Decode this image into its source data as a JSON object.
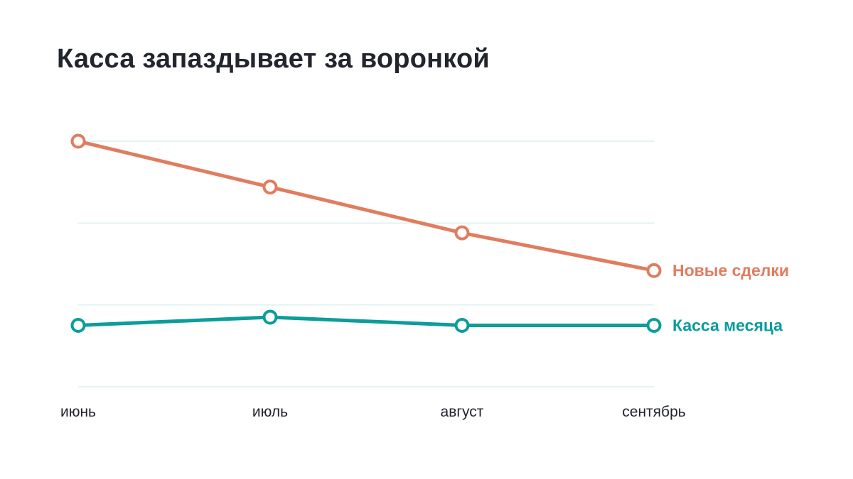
{
  "colors": {
    "background": "#ffffff",
    "title": "#23252e",
    "grid": "#e3f3f3",
    "series_deals": "#e07d5f",
    "series_cash": "#0c9c9c"
  },
  "chart_data": {
    "type": "line",
    "title": "Касса запаздывает за воронкой",
    "xlabel": "",
    "ylabel": "",
    "categories": [
      "июнь",
      "июль",
      "август",
      "сентябрь"
    ],
    "ylim": [
      0,
      3
    ],
    "y_ticks_labeled": false,
    "grid": "horizontal",
    "legend": "direct labels at right end of lines",
    "series": [
      {
        "name": "Новые сделки",
        "values": [
          3.0,
          2.44,
          1.88,
          1.42
        ],
        "color": "#e07d5f"
      },
      {
        "name": "Касса месяца",
        "values": [
          0.75,
          0.85,
          0.75,
          0.75
        ],
        "color": "#0c9c9c"
      }
    ]
  }
}
